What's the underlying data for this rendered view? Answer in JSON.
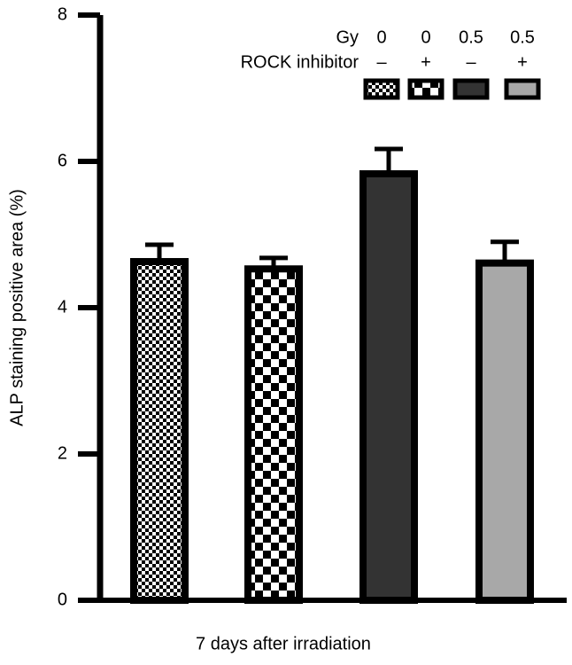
{
  "chart_data": {
    "type": "bar",
    "xlabel": "7 days after irradiation",
    "ylabel": "ALP staining positive area (%)",
    "categories": [
      null,
      null,
      null,
      null
    ],
    "values": [
      4.63,
      4.53,
      5.83,
      4.61
    ],
    "errors": [
      0.23,
      0.15,
      0.34,
      0.29
    ],
    "fills": [
      "checker-fine",
      "checker-coarse",
      "#333333",
      "#a8a8a8"
    ],
    "ylim": [
      0,
      8
    ],
    "yticks": [
      0,
      2,
      4,
      6,
      8
    ],
    "legend": {
      "rows": [
        {
          "label": "Gy",
          "values": [
            "0",
            "0",
            "0.5",
            "0.5"
          ]
        },
        {
          "label": "ROCK inhibitor",
          "values": [
            "–",
            "+",
            "–",
            "+"
          ]
        }
      ]
    }
  }
}
